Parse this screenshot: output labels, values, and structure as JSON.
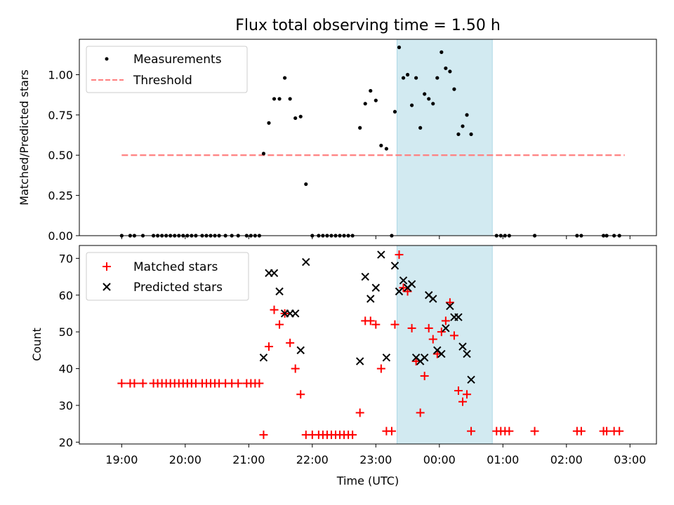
{
  "figure": {
    "title": "Flux total observing time = 1.50 h"
  },
  "colors": {
    "highlight": "#add8e6",
    "threshold": "#ff7f7f",
    "measurement": "#000000",
    "matched": "#ff0000",
    "predicted": "#000000"
  },
  "chart_data": [
    {
      "type": "scatter",
      "ylabel": "Matched/Predicted stars",
      "ylim": [
        0,
        1.22
      ],
      "yticks": [
        "0.00",
        "0.25",
        "0.50",
        "0.75",
        "1.00"
      ],
      "grid": false,
      "legend_position": "upper-left",
      "shaded_span": [
        "23:20",
        "00:50"
      ],
      "series": [
        {
          "name": "Measurements",
          "marker": "dot",
          "points": [
            [
              "19:00",
              0
            ],
            [
              "19:08",
              0
            ],
            [
              "19:12",
              0
            ],
            [
              "19:20",
              0
            ],
            [
              "19:30",
              0
            ],
            [
              "19:34",
              0
            ],
            [
              "19:38",
              0
            ],
            [
              "19:42",
              0
            ],
            [
              "19:46",
              0
            ],
            [
              "19:50",
              0
            ],
            [
              "19:54",
              0
            ],
            [
              "19:58",
              0
            ],
            [
              "20:02",
              0
            ],
            [
              "20:06",
              0
            ],
            [
              "20:10",
              0
            ],
            [
              "20:16",
              0
            ],
            [
              "20:20",
              0
            ],
            [
              "20:24",
              0
            ],
            [
              "20:28",
              0
            ],
            [
              "20:32",
              0
            ],
            [
              "20:38",
              0
            ],
            [
              "20:44",
              0
            ],
            [
              "20:50",
              0
            ],
            [
              "20:58",
              0
            ],
            [
              "21:02",
              0
            ],
            [
              "21:06",
              0
            ],
            [
              "21:10",
              0
            ],
            [
              "21:14",
              0.51
            ],
            [
              "21:19",
              0.7
            ],
            [
              "21:24",
              0.85
            ],
            [
              "21:29",
              0.85
            ],
            [
              "21:34",
              0.98
            ],
            [
              "21:39",
              0.85
            ],
            [
              "21:44",
              0.73
            ],
            [
              "21:49",
              0.74
            ],
            [
              "21:54",
              0.32
            ],
            [
              "22:00",
              0
            ],
            [
              "22:06",
              0
            ],
            [
              "22:10",
              0
            ],
            [
              "22:14",
              0
            ],
            [
              "22:18",
              0
            ],
            [
              "22:22",
              0
            ],
            [
              "22:26",
              0
            ],
            [
              "22:30",
              0
            ],
            [
              "22:34",
              0
            ],
            [
              "22:38",
              0
            ],
            [
              "22:45",
              0.67
            ],
            [
              "22:50",
              0.82
            ],
            [
              "22:55",
              0.9
            ],
            [
              "23:00",
              0.84
            ],
            [
              "23:05",
              0.56
            ],
            [
              "23:10",
              0.54
            ],
            [
              "23:15",
              0
            ],
            [
              "23:18",
              0.77
            ],
            [
              "23:22",
              1.17
            ],
            [
              "23:26",
              0.98
            ],
            [
              "23:30",
              1.0
            ],
            [
              "23:34",
              0.81
            ],
            [
              "23:38",
              0.98
            ],
            [
              "23:42",
              0.67
            ],
            [
              "23:46",
              0.88
            ],
            [
              "23:50",
              0.85
            ],
            [
              "23:54",
              0.82
            ],
            [
              "23:58",
              0.98
            ],
            [
              "00:02",
              1.14
            ],
            [
              "00:06",
              1.04
            ],
            [
              "00:10",
              1.02
            ],
            [
              "00:14",
              0.91
            ],
            [
              "00:18",
              0.63
            ],
            [
              "00:22",
              0.68
            ],
            [
              "00:26",
              0.75
            ],
            [
              "00:30",
              0.63
            ],
            [
              "00:54",
              0
            ],
            [
              "00:58",
              0
            ],
            [
              "01:02",
              0
            ],
            [
              "01:06",
              0
            ],
            [
              "01:30",
              0
            ],
            [
              "02:10",
              0
            ],
            [
              "02:14",
              0
            ],
            [
              "02:35",
              0
            ],
            [
              "02:38",
              0
            ],
            [
              "02:45",
              0
            ],
            [
              "02:50",
              0
            ]
          ]
        },
        {
          "name": "Threshold",
          "type": "line",
          "style": "dashed",
          "x": [
            "19:00",
            "02:55"
          ],
          "y": [
            0.5,
            0.5
          ]
        }
      ]
    },
    {
      "type": "scatter",
      "xlabel": "Time (UTC)",
      "ylabel": "Count",
      "ylim": [
        19.5,
        73.5
      ],
      "yticks": [
        "20",
        "30",
        "40",
        "50",
        "60",
        "70"
      ],
      "xticks": [
        "19:00",
        "20:00",
        "21:00",
        "22:00",
        "23:00",
        "00:00",
        "01:00",
        "02:00",
        "03:00"
      ],
      "grid": false,
      "legend_position": "upper-left",
      "shaded_span": [
        "23:20",
        "00:50"
      ],
      "series": [
        {
          "name": "Matched stars",
          "marker": "plus",
          "points": [
            [
              "19:00",
              36
            ],
            [
              "19:08",
              36
            ],
            [
              "19:12",
              36
            ],
            [
              "19:20",
              36
            ],
            [
              "19:30",
              36
            ],
            [
              "19:34",
              36
            ],
            [
              "19:38",
              36
            ],
            [
              "19:42",
              36
            ],
            [
              "19:46",
              36
            ],
            [
              "19:50",
              36
            ],
            [
              "19:54",
              36
            ],
            [
              "19:58",
              36
            ],
            [
              "20:02",
              36
            ],
            [
              "20:06",
              36
            ],
            [
              "20:10",
              36
            ],
            [
              "20:16",
              36
            ],
            [
              "20:20",
              36
            ],
            [
              "20:24",
              36
            ],
            [
              "20:28",
              36
            ],
            [
              "20:32",
              36
            ],
            [
              "20:38",
              36
            ],
            [
              "20:44",
              36
            ],
            [
              "20:50",
              36
            ],
            [
              "20:58",
              36
            ],
            [
              "21:02",
              36
            ],
            [
              "21:06",
              36
            ],
            [
              "21:10",
              36
            ],
            [
              "21:14",
              22
            ],
            [
              "21:19",
              46
            ],
            [
              "21:24",
              56
            ],
            [
              "21:29",
              52
            ],
            [
              "21:34",
              55
            ],
            [
              "21:39",
              47
            ],
            [
              "21:44",
              40
            ],
            [
              "21:49",
              33
            ],
            [
              "21:54",
              22
            ],
            [
              "22:00",
              22
            ],
            [
              "22:06",
              22
            ],
            [
              "22:10",
              22
            ],
            [
              "22:14",
              22
            ],
            [
              "22:18",
              22
            ],
            [
              "22:22",
              22
            ],
            [
              "22:26",
              22
            ],
            [
              "22:30",
              22
            ],
            [
              "22:34",
              22
            ],
            [
              "22:38",
              22
            ],
            [
              "22:45",
              28
            ],
            [
              "22:50",
              53
            ],
            [
              "22:55",
              53
            ],
            [
              "23:00",
              52
            ],
            [
              "23:05",
              40
            ],
            [
              "23:10",
              23
            ],
            [
              "23:15",
              23
            ],
            [
              "23:18",
              52
            ],
            [
              "23:22",
              71
            ],
            [
              "23:26",
              62
            ],
            [
              "23:30",
              61
            ],
            [
              "23:34",
              51
            ],
            [
              "23:38",
              42
            ],
            [
              "23:42",
              28
            ],
            [
              "23:46",
              38
            ],
            [
              "23:50",
              51
            ],
            [
              "23:54",
              48
            ],
            [
              "23:58",
              44
            ],
            [
              "00:02",
              50
            ],
            [
              "00:06",
              53
            ],
            [
              "00:10",
              58
            ],
            [
              "00:14",
              49
            ],
            [
              "00:18",
              34
            ],
            [
              "00:22",
              31
            ],
            [
              "00:26",
              33
            ],
            [
              "00:30",
              23
            ],
            [
              "00:54",
              23
            ],
            [
              "00:58",
              23
            ],
            [
              "01:02",
              23
            ],
            [
              "01:06",
              23
            ],
            [
              "01:30",
              23
            ],
            [
              "02:10",
              23
            ],
            [
              "02:14",
              23
            ],
            [
              "02:35",
              23
            ],
            [
              "02:38",
              23
            ],
            [
              "02:45",
              23
            ],
            [
              "02:50",
              23
            ]
          ]
        },
        {
          "name": "Predicted stars",
          "marker": "x",
          "points": [
            [
              "21:14",
              43
            ],
            [
              "21:19",
              66
            ],
            [
              "21:24",
              66
            ],
            [
              "21:29",
              61
            ],
            [
              "21:34",
              55
            ],
            [
              "21:39",
              55
            ],
            [
              "21:44",
              55
            ],
            [
              "21:49",
              45
            ],
            [
              "21:54",
              69
            ],
            [
              "22:45",
              42
            ],
            [
              "22:50",
              65
            ],
            [
              "22:55",
              59
            ],
            [
              "23:00",
              62
            ],
            [
              "23:05",
              71
            ],
            [
              "23:10",
              43
            ],
            [
              "23:18",
              68
            ],
            [
              "23:22",
              61
            ],
            [
              "23:26",
              64
            ],
            [
              "23:30",
              62
            ],
            [
              "23:34",
              63
            ],
            [
              "23:38",
              43
            ],
            [
              "23:42",
              42
            ],
            [
              "23:46",
              43
            ],
            [
              "23:50",
              60
            ],
            [
              "23:54",
              59
            ],
            [
              "23:58",
              45
            ],
            [
              "00:02",
              44
            ],
            [
              "00:06",
              51
            ],
            [
              "00:10",
              57
            ],
            [
              "00:14",
              54
            ],
            [
              "00:18",
              54
            ],
            [
              "00:22",
              46
            ],
            [
              "00:26",
              44
            ],
            [
              "00:30",
              37
            ]
          ]
        }
      ]
    }
  ]
}
